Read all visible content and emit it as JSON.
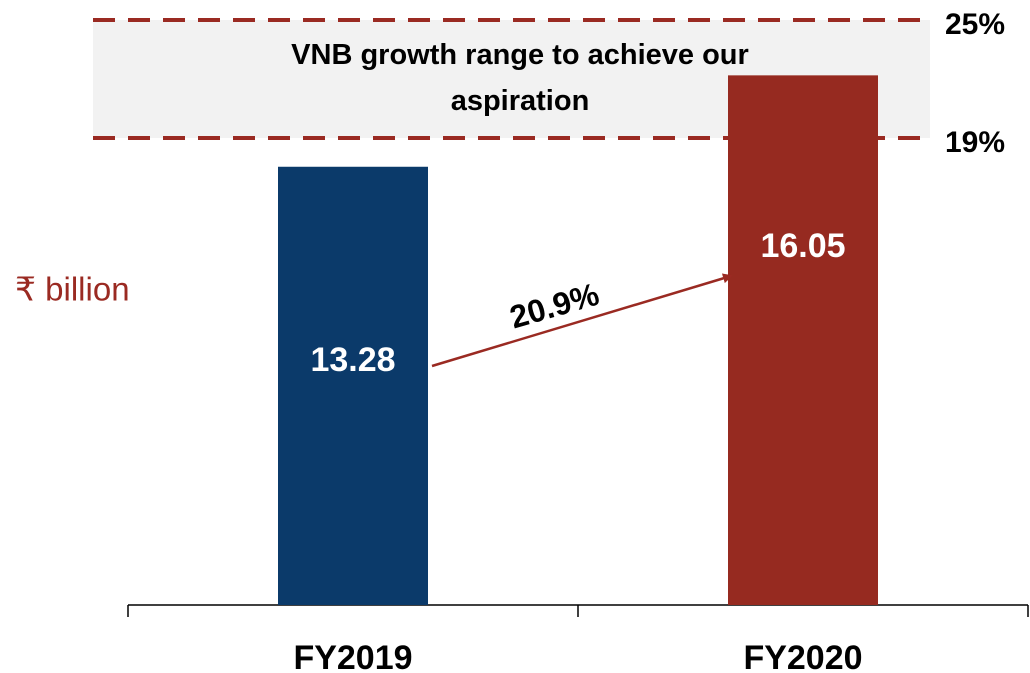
{
  "chart_data": {
    "type": "bar",
    "y_label": "₹ billion",
    "categories": [
      "FY2019",
      "FY2020"
    ],
    "values": [
      13.28,
      16.05
    ],
    "colors": [
      "#0b3a6a",
      "#962a20"
    ],
    "growth": {
      "value": 20.9,
      "label": "20.9%"
    },
    "growth_range": {
      "label": "VNB growth range to achieve our aspiration",
      "bounds": [
        {
          "value": 25,
          "label": "25%"
        },
        {
          "value": 19,
          "label": "19%"
        }
      ],
      "color": "#9a2a22"
    }
  }
}
